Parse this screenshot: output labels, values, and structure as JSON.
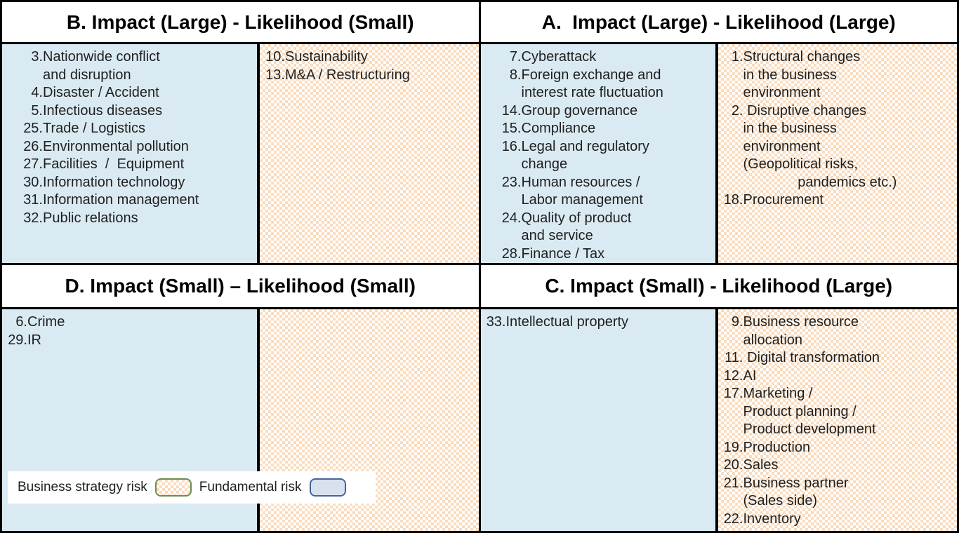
{
  "colors": {
    "fundamental_fill": "#DAEAF2",
    "strategy_pattern": "#FADCBE",
    "strategy_swatch_border": "#6D8C4F",
    "fundamental_swatch_border": "#48639B",
    "fundamental_swatch_fill": "#D8E1F0",
    "border": "#000000",
    "text": "#1f1f1f"
  },
  "quadrants": {
    "b": {
      "title": "B. Impact (Large) - Likelihood (Small)",
      "fundamental": [
        {
          "num": "3.",
          "text": "Nationwide conflict\nand disruption"
        },
        {
          "num": "4.",
          "text": "Disaster / Accident"
        },
        {
          "num": "5.",
          "text": "Infectious diseases"
        },
        {
          "num": "25.",
          "text": "Trade / Logistics"
        },
        {
          "num": "26.",
          "text": "Environmental pollution"
        },
        {
          "num": "27.",
          "text": "Facilities  /  Equipment"
        },
        {
          "num": "30.",
          "text": "Information technology"
        },
        {
          "num": "31.",
          "text": "Information management"
        },
        {
          "num": "32.",
          "text": "Public relations"
        }
      ],
      "strategy": [
        {
          "num": "10.",
          "text": "Sustainability"
        },
        {
          "num": "13.",
          "text": "M&A / Restructuring"
        }
      ]
    },
    "a": {
      "title": "A.  Impact (Large) - Likelihood (Large)",
      "fundamental": [
        {
          "num": "7.",
          "text": "Cyberattack"
        },
        {
          "num": "8.",
          "text": "Foreign exchange and\ninterest rate fluctuation"
        },
        {
          "num": "14.",
          "text": "Group governance"
        },
        {
          "num": "15.",
          "text": "Compliance"
        },
        {
          "num": "16.",
          "text": "Legal and regulatory\nchange"
        },
        {
          "num": "23.",
          "text": "Human resources /\nLabor management"
        },
        {
          "num": "24.",
          "text": "Quality of product\nand service"
        },
        {
          "num": "28.",
          "text": "Finance / Tax"
        }
      ],
      "strategy": [
        {
          "num": "1.",
          "text": "Structural changes\nin the business\nenvironment"
        },
        {
          "num": "2.",
          "text": " Disruptive changes\nin the business\nenvironment\n(Geopolitical risks,\n              pandemics etc.)"
        },
        {
          "num": "18.",
          "text": "Procurement"
        }
      ]
    },
    "d": {
      "title": "D. Impact (Small) – Likelihood (Small)",
      "fundamental": [
        {
          "num": "6.",
          "text": "Crime"
        },
        {
          "num": "29.",
          "text": "IR"
        }
      ],
      "strategy": []
    },
    "c": {
      "title": "C. Impact (Small) - Likelihood (Large)",
      "fundamental": [
        {
          "num": "33.",
          "text": "Intellectual property"
        }
      ],
      "strategy": [
        {
          "num": "9.",
          "text": "Business resource\nallocation"
        },
        {
          "num": "11.",
          "text": " Digital transformation"
        },
        {
          "num": "12.",
          "text": "AI"
        },
        {
          "num": "17.",
          "text": "Marketing /\nProduct planning /\nProduct development"
        },
        {
          "num": "19.",
          "text": "Production"
        },
        {
          "num": "20.",
          "text": "Sales"
        },
        {
          "num": "21.",
          "text": "Business partner\n(Sales side)"
        },
        {
          "num": "22.",
          "text": "Inventory"
        }
      ]
    }
  },
  "legend": {
    "strategy_label": "Business strategy risk",
    "fundamental_label": "Fundamental risk"
  }
}
